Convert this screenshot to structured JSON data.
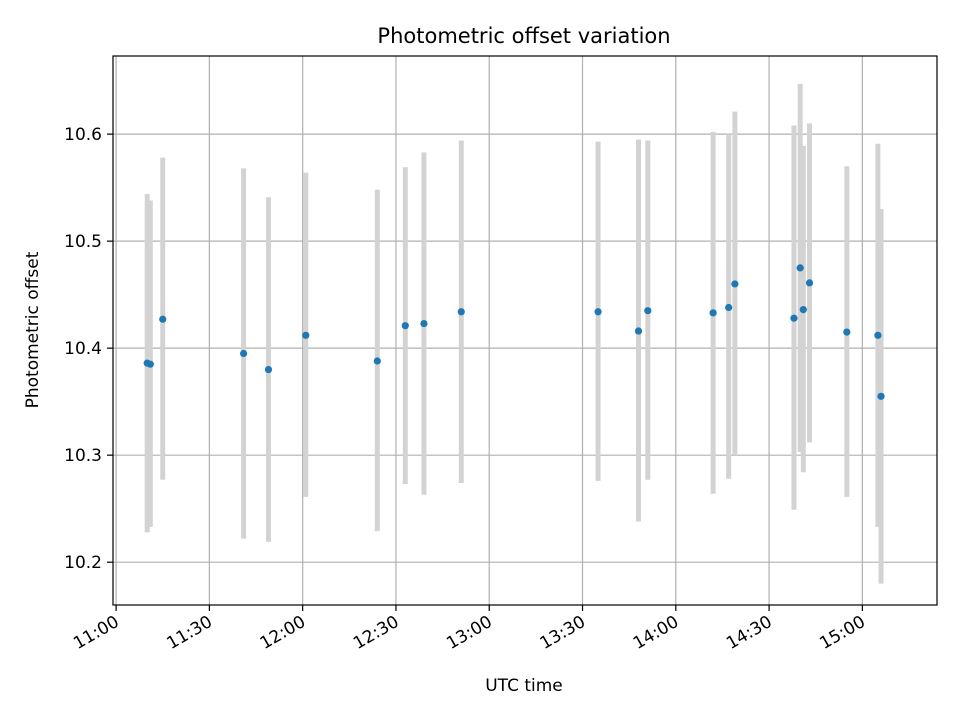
{
  "chart_data": {
    "type": "scatter",
    "title": "Photometric offset variation",
    "xlabel": "UTC time",
    "ylabel": "Photometric offset",
    "grid": true,
    "x_axis": {
      "type": "time",
      "range": [
        "10:59",
        "15:24"
      ],
      "ticks": [
        "11:00",
        "11:30",
        "12:00",
        "12:30",
        "13:00",
        "13:30",
        "14:00",
        "14:30",
        "15:00"
      ]
    },
    "y_axis": {
      "range": [
        10.16,
        10.673
      ],
      "ticks": [
        10.2,
        10.3,
        10.4,
        10.5,
        10.6
      ],
      "tick_labels": [
        "10.2",
        "10.3",
        "10.4",
        "10.5",
        "10.6"
      ]
    },
    "points": [
      {
        "time": "11:10",
        "y": 10.386,
        "ylow": 10.228,
        "yhigh": 10.544
      },
      {
        "time": "11:11",
        "y": 10.385,
        "ylow": 10.233,
        "yhigh": 10.538
      },
      {
        "time": "11:15",
        "y": 10.427,
        "ylow": 10.277,
        "yhigh": 10.578
      },
      {
        "time": "11:41",
        "y": 10.395,
        "ylow": 10.222,
        "yhigh": 10.568
      },
      {
        "time": "11:49",
        "y": 10.38,
        "ylow": 10.219,
        "yhigh": 10.541
      },
      {
        "time": "12:01",
        "y": 10.412,
        "ylow": 10.261,
        "yhigh": 10.564
      },
      {
        "time": "12:24",
        "y": 10.388,
        "ylow": 10.229,
        "yhigh": 10.548
      },
      {
        "time": "12:33",
        "y": 10.421,
        "ylow": 10.273,
        "yhigh": 10.569
      },
      {
        "time": "12:39",
        "y": 10.423,
        "ylow": 10.263,
        "yhigh": 10.583
      },
      {
        "time": "12:51",
        "y": 10.434,
        "ylow": 10.274,
        "yhigh": 10.594
      },
      {
        "time": "13:35",
        "y": 10.434,
        "ylow": 10.276,
        "yhigh": 10.593
      },
      {
        "time": "13:48",
        "y": 10.416,
        "ylow": 10.238,
        "yhigh": 10.595
      },
      {
        "time": "13:51",
        "y": 10.435,
        "ylow": 10.277,
        "yhigh": 10.594
      },
      {
        "time": "14:12",
        "y": 10.433,
        "ylow": 10.264,
        "yhigh": 10.602
      },
      {
        "time": "14:17",
        "y": 10.438,
        "ylow": 10.278,
        "yhigh": 10.6
      },
      {
        "time": "14:19",
        "y": 10.46,
        "ylow": 10.3,
        "yhigh": 10.621
      },
      {
        "time": "14:38",
        "y": 10.428,
        "ylow": 10.249,
        "yhigh": 10.608
      },
      {
        "time": "14:40",
        "y": 10.475,
        "ylow": 10.303,
        "yhigh": 10.647
      },
      {
        "time": "14:41",
        "y": 10.436,
        "ylow": 10.284,
        "yhigh": 10.589
      },
      {
        "time": "14:43",
        "y": 10.461,
        "ylow": 10.312,
        "yhigh": 10.61
      },
      {
        "time": "14:55",
        "y": 10.415,
        "ylow": 10.261,
        "yhigh": 10.57
      },
      {
        "time": "15:05",
        "y": 10.412,
        "ylow": 10.233,
        "yhigh": 10.591
      },
      {
        "time": "15:06",
        "y": 10.355,
        "ylow": 10.18,
        "yhigh": 10.53
      }
    ],
    "colors": {
      "points": "#1f77b4",
      "errorbars": "#d3d3d3",
      "grid": "#b0b0b0"
    }
  }
}
